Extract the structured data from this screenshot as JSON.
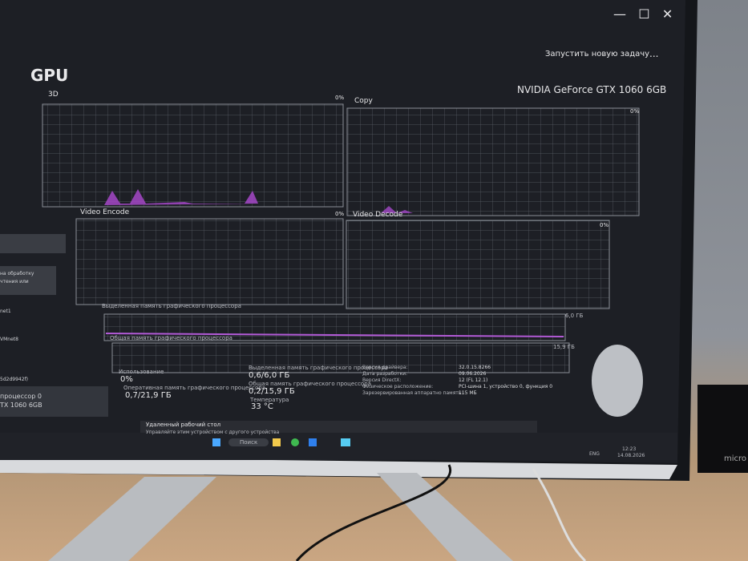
{
  "window": {
    "new_task": "Запустить новую задачу",
    "more": "..."
  },
  "header": {
    "title": "GPU",
    "device": "NVIDIA GeForce GTX 1060 6GB"
  },
  "graphs": [
    {
      "label": "3D",
      "left_value": "0%",
      "right_value": "0%"
    },
    {
      "label": "Copy",
      "left_value": "0%",
      "right_value": "0%"
    },
    {
      "label": "Video Encode",
      "left_value": "0%",
      "right_value": "0%"
    },
    {
      "label": "Video Decode",
      "left_value": "0%",
      "right_value": "0%"
    }
  ],
  "memory": {
    "dedicated_label": "Выделенная память графического процессора",
    "dedicated_max": "6,0 ГБ",
    "shared_label": "Общая память графического процессора",
    "shared_max": "15,9 ГБ"
  },
  "stats": {
    "usage_label": "Использование",
    "usage": "0%",
    "dedicated_label": "Выделенная память графического процессора",
    "dedicated": "0,6/6,0 ГБ",
    "gpu_memory_label": "Оперативная память графического процессора",
    "gpu_memory": "0,7/21,9 ГБ",
    "shared_label": "Общая память графического процессора",
    "shared": "0,2/15,9 ГБ",
    "temp_label": "Температура",
    "temp": "33 °C"
  },
  "details": [
    {
      "label": "Версия драйвера:",
      "value": "32.0.15.8266"
    },
    {
      "label": "Дата разработки:",
      "value": "09.06.2026"
    },
    {
      "label": "Версия DirectX:",
      "value": "12 (FL 12.1)"
    },
    {
      "label": "Физическое расположение:",
      "value": "PCI-шина 1, устройство 0, функция 0"
    },
    {
      "label": "Зарезервированная аппаратно память:",
      "value": "115 МБ"
    }
  ],
  "sidebar": [
    "на обработку",
    "чтения или",
    "net1",
    "VMnet8",
    "5d2d9942f)",
    "процессор 0",
    "TX 1060 6GB"
  ],
  "notification": {
    "title": "Удаленный рабочий стол",
    "text": "Управляйте этим устройством с другого устройства"
  },
  "taskbar": {
    "search": "Поиск",
    "lang": "ENG",
    "time": "12:23",
    "date": "14.08.2026"
  },
  "speaker": "micro"
}
